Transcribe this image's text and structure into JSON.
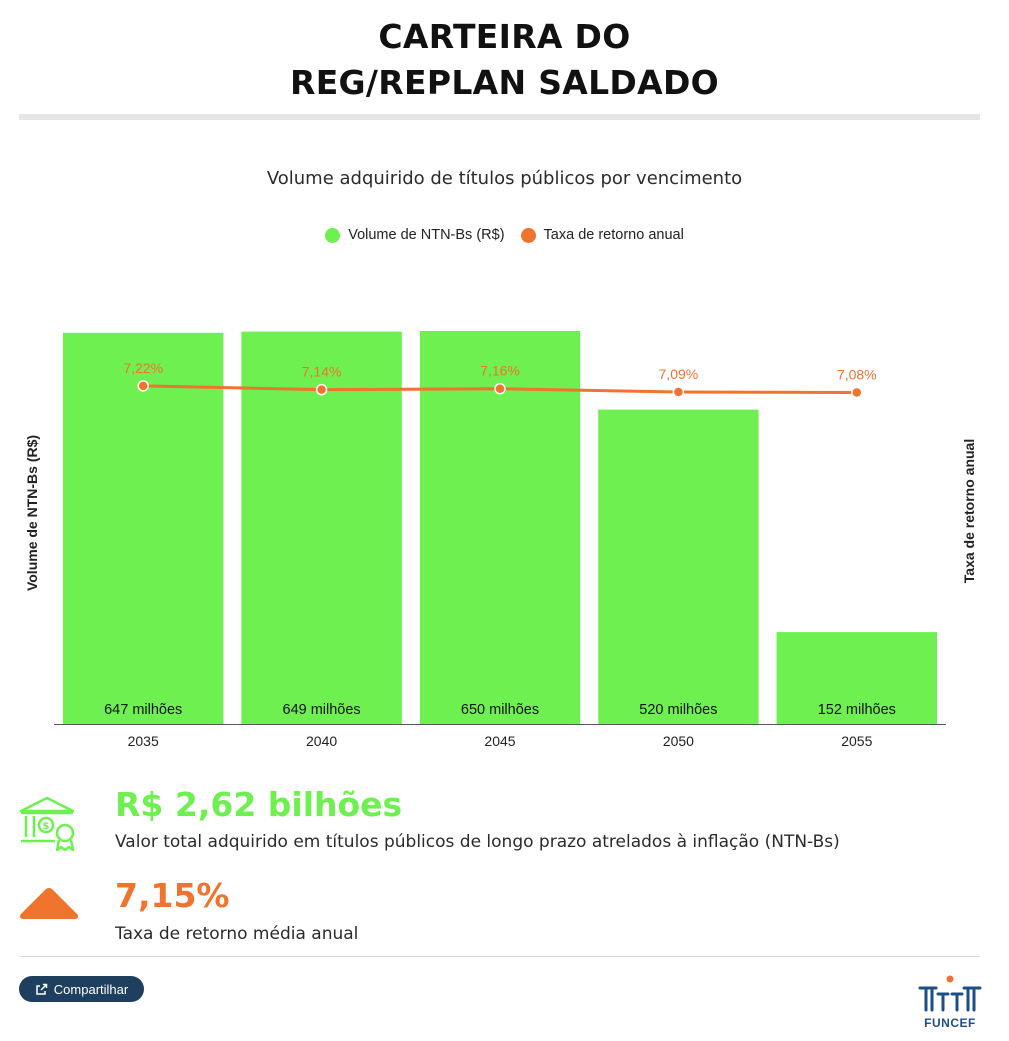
{
  "header": {
    "title_line1": "CARTEIRA DO",
    "title_line2": "REG/REPLAN SALDADO"
  },
  "colors": {
    "bar": "#6ef050",
    "line": "#f0732e",
    "stat_green": "#6ef050",
    "stat_orange": "#f0732e",
    "button": "#1e3f5e",
    "logo_blue": "#1d4e8c",
    "logo_orange": "#f0732e"
  },
  "chart_data": {
    "type": "bar",
    "title": "Volume adquirido de títulos públicos por vencimento",
    "categories": [
      "2035",
      "2040",
      "2045",
      "2050",
      "2055"
    ],
    "series": [
      {
        "name": "Volume de NTN-Bs (R$)",
        "type": "bar",
        "axis": "left",
        "values": [
          647,
          649,
          650,
          520,
          152
        ],
        "labels": [
          "647 milhões",
          "649 milhões",
          "650 milhões",
          "520 milhões",
          "152 milhões"
        ]
      },
      {
        "name": "Taxa de retorno anual",
        "type": "line",
        "axis": "right",
        "values": [
          7.22,
          7.14,
          7.16,
          7.09,
          7.08
        ],
        "labels": [
          "7,22%",
          "7,14%",
          "7,16%",
          "7,09%",
          "7,08%"
        ]
      }
    ],
    "ylabel": "Volume de NTN-Bs (R$)",
    "y2label": "Taxa de retorno anual",
    "ylim": [
      0,
      650
    ],
    "y2lim": [
      0,
      8.5
    ],
    "grid": false,
    "legend_position": "top-center"
  },
  "stats": {
    "total_value": "R$ 2,62 bilhões",
    "total_desc": "Valor total adquirido em títulos públicos de longo prazo atrelados à inflação (NTN-Bs)",
    "avg_rate": "7,15%",
    "avg_desc": "Taxa de retorno média anual",
    "total_icon": "bank-money-icon",
    "avg_icon": "triangle-up-icon"
  },
  "footer": {
    "share_label": "Compartilhar",
    "share_icon": "share-icon",
    "logo_text": "FUNCEF"
  }
}
